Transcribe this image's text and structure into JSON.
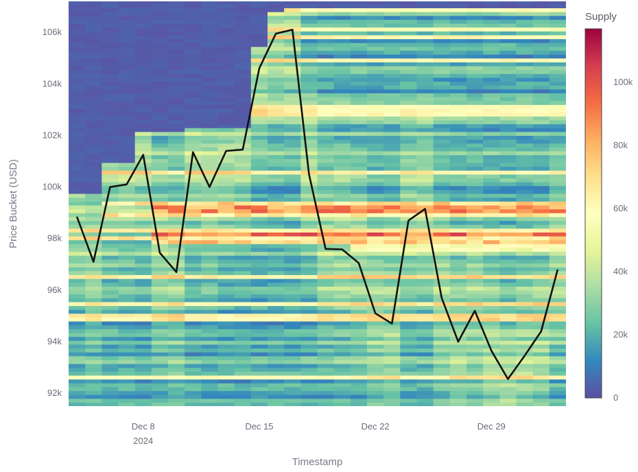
{
  "chart_data": {
    "type": "heatmap",
    "title": "",
    "xlabel": "Timestamp",
    "ylabel": "Price Bucket (USD)",
    "x_ticks": [
      {
        "date": "2024-12-08",
        "label": "Dec 8",
        "sublabel": "2024"
      },
      {
        "date": "2024-12-15",
        "label": "Dec 15",
        "sublabel": ""
      },
      {
        "date": "2024-12-22",
        "label": "Dec 22",
        "sublabel": ""
      },
      {
        "date": "2024-12-29",
        "label": "Dec 29",
        "sublabel": ""
      }
    ],
    "x_range": [
      "2024-12-03T12:00",
      "2025-01-02T12:00"
    ],
    "y_ticks": [
      {
        "value": 92000,
        "label": "92k"
      },
      {
        "value": 94000,
        "label": "94k"
      },
      {
        "value": 96000,
        "label": "96k"
      },
      {
        "value": 98000,
        "label": "98k"
      },
      {
        "value": 100000,
        "label": "100k"
      },
      {
        "value": 102000,
        "label": "102k"
      },
      {
        "value": 104000,
        "label": "104k"
      },
      {
        "value": 106000,
        "label": "106k"
      }
    ],
    "y_range": [
      91500,
      107200
    ],
    "colorbar": {
      "title": "Supply",
      "range": [
        0,
        117000
      ],
      "ticks": [
        {
          "value": 0,
          "label": "0"
        },
        {
          "value": 20000,
          "label": "20k"
        },
        {
          "value": 40000,
          "label": "40k"
        },
        {
          "value": 60000,
          "label": "60k"
        },
        {
          "value": 80000,
          "label": "80k"
        },
        {
          "value": 100000,
          "label": "100k"
        }
      ],
      "colorscale": "Spectral (reversed)"
    },
    "heatmap_bands": [
      {
        "from": 99300,
        "to": 99450,
        "value": 70000,
        "start": "2024-12-05"
      },
      {
        "from": 99000,
        "to": 99200,
        "value": 85000,
        "start": "2024-12-08"
      },
      {
        "from": 98850,
        "to": 99000,
        "value": 65000,
        "start": "2024-12-05"
      },
      {
        "from": 98000,
        "to": 98250,
        "value": 92000,
        "start": "2024-12-08"
      },
      {
        "from": 97750,
        "to": 97950,
        "value": 75000,
        "start": "2024-12-08"
      },
      {
        "from": 97400,
        "to": 97700,
        "value": 55000,
        "start": "2024-12-20"
      }
    ],
    "series": [
      {
        "type": "line",
        "color": "#111111",
        "points": [
          {
            "x": "2024-12-04T00:00",
            "y": 98850
          },
          {
            "x": "2024-12-05T00:00",
            "y": 97100
          },
          {
            "x": "2024-12-06T00:00",
            "y": 100000
          },
          {
            "x": "2024-12-07T00:00",
            "y": 100100
          },
          {
            "x": "2024-12-08T00:00",
            "y": 101250
          },
          {
            "x": "2024-12-09T00:00",
            "y": 97450
          },
          {
            "x": "2024-12-10T00:00",
            "y": 96700
          },
          {
            "x": "2024-12-11T00:00",
            "y": 101350
          },
          {
            "x": "2024-12-12T00:00",
            "y": 100000
          },
          {
            "x": "2024-12-13T00:00",
            "y": 101400
          },
          {
            "x": "2024-12-14T00:00",
            "y": 101450
          },
          {
            "x": "2024-12-15T00:00",
            "y": 104600
          },
          {
            "x": "2024-12-16T00:00",
            "y": 105950
          },
          {
            "x": "2024-12-17T00:00",
            "y": 106100
          },
          {
            "x": "2024-12-18T00:00",
            "y": 100500
          },
          {
            "x": "2024-12-19T00:00",
            "y": 97600
          },
          {
            "x": "2024-12-20T00:00",
            "y": 97580
          },
          {
            "x": "2024-12-21T00:00",
            "y": 97050
          },
          {
            "x": "2024-12-22T00:00",
            "y": 95100
          },
          {
            "x": "2024-12-23T00:00",
            "y": 94700
          },
          {
            "x": "2024-12-24T00:00",
            "y": 98700
          },
          {
            "x": "2024-12-25T00:00",
            "y": 99150
          },
          {
            "x": "2024-12-26T00:00",
            "y": 95700
          },
          {
            "x": "2024-12-27T00:00",
            "y": 94000
          },
          {
            "x": "2024-12-28T00:00",
            "y": 95200
          },
          {
            "x": "2024-12-29T00:00",
            "y": 93650
          },
          {
            "x": "2024-12-30T00:00",
            "y": 92550
          },
          {
            "x": "2024-12-31T00:00",
            "y": 93450
          },
          {
            "x": "2025-01-01T00:00",
            "y": 94400
          },
          {
            "x": "2025-01-02T00:00",
            "y": 96800
          }
        ]
      }
    ],
    "legend": "colorbar-right",
    "grid": false
  }
}
